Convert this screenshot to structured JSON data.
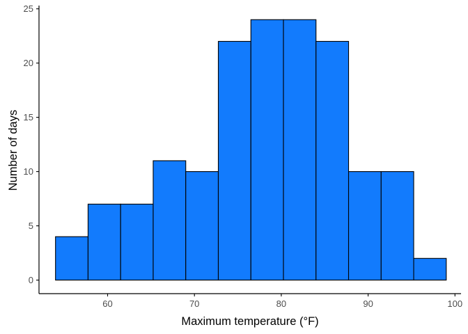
{
  "chart_data": {
    "type": "bar",
    "subtype": "histogram",
    "xlabel": "Maximum temperature (°F)",
    "ylabel": "Number of days",
    "xlim": [
      52.1,
      100.7
    ],
    "ylim": [
      -1.25,
      25.3
    ],
    "x_ticks": [
      60,
      70,
      80,
      90,
      100
    ],
    "y_ticks": [
      0,
      5,
      10,
      15,
      20,
      25
    ],
    "bins": [
      {
        "start": 54.0,
        "end": 57.75,
        "count": 4
      },
      {
        "start": 57.75,
        "end": 61.5,
        "count": 7
      },
      {
        "start": 61.5,
        "end": 65.25,
        "count": 7
      },
      {
        "start": 65.25,
        "end": 69.0,
        "count": 11
      },
      {
        "start": 69.0,
        "end": 72.75,
        "count": 10
      },
      {
        "start": 72.75,
        "end": 76.5,
        "count": 22
      },
      {
        "start": 76.5,
        "end": 80.25,
        "count": 24
      },
      {
        "start": 80.25,
        "end": 84.0,
        "count": 24
      },
      {
        "start": 84.0,
        "end": 87.75,
        "count": 22
      },
      {
        "start": 87.75,
        "end": 91.5,
        "count": 10
      },
      {
        "start": 91.5,
        "end": 95.25,
        "count": 10
      },
      {
        "start": 95.25,
        "end": 99.0,
        "count": 2
      }
    ],
    "grid": false,
    "legend": "none",
    "colors": {
      "bar_fill": "#127bfd",
      "bar_stroke": "#000000",
      "axis": "#000000",
      "tick_text": "#4d4d4d",
      "title_text": "#000000"
    }
  }
}
